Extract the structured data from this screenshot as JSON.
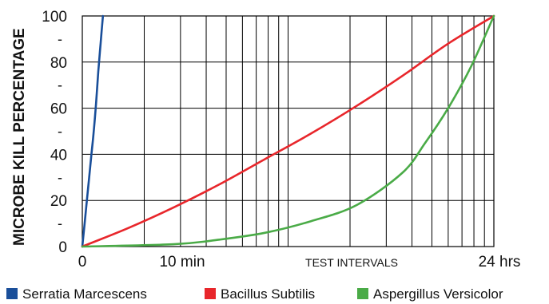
{
  "chart_data": {
    "type": "line",
    "ylabel": "MICROBE KILL PERCENTAGE",
    "xlabel": "TEST INTERVALS",
    "ylim": [
      0,
      100
    ],
    "y_ticks": [
      "0",
      "20",
      "40",
      "60",
      "80",
      "100"
    ],
    "y_minor_ticks": [
      "-",
      "-",
      "-",
      "-",
      "-"
    ],
    "x_tick_labels": [
      "0",
      "10 min",
      "24 hrs"
    ],
    "x_scale": "log-cycle",
    "grid": true,
    "legend_position": "bottom",
    "series": [
      {
        "name": "Serratia Marcescens",
        "color": "#1a4f9a",
        "points": [
          [
            0,
            0
          ],
          [
            0.05,
            10
          ],
          [
            0.1,
            20
          ],
          [
            0.15,
            30
          ],
          [
            0.2,
            40
          ],
          [
            0.25,
            50
          ],
          [
            0.3,
            62
          ],
          [
            0.35,
            76
          ],
          [
            0.4,
            88
          ],
          [
            0.45,
            100
          ]
        ]
      },
      {
        "name": "Bacillus Subtilis",
        "color": "#e8262b",
        "points": [
          [
            0,
            0
          ],
          [
            1,
            8
          ],
          [
            2,
            17
          ],
          [
            3,
            27
          ],
          [
            4,
            38
          ],
          [
            5,
            49
          ],
          [
            6,
            61
          ],
          [
            7,
            74
          ],
          [
            8,
            88
          ],
          [
            9,
            100
          ]
        ]
      },
      {
        "name": "Aspergillus Versicolor",
        "color": "#4aab47",
        "points": [
          [
            0,
            0
          ],
          [
            2,
            1
          ],
          [
            3,
            3
          ],
          [
            4,
            6
          ],
          [
            5,
            11
          ],
          [
            6,
            18
          ],
          [
            7,
            32
          ],
          [
            7.5,
            45
          ],
          [
            8,
            60
          ],
          [
            8.5,
            78
          ],
          [
            9,
            100
          ]
        ]
      }
    ]
  }
}
